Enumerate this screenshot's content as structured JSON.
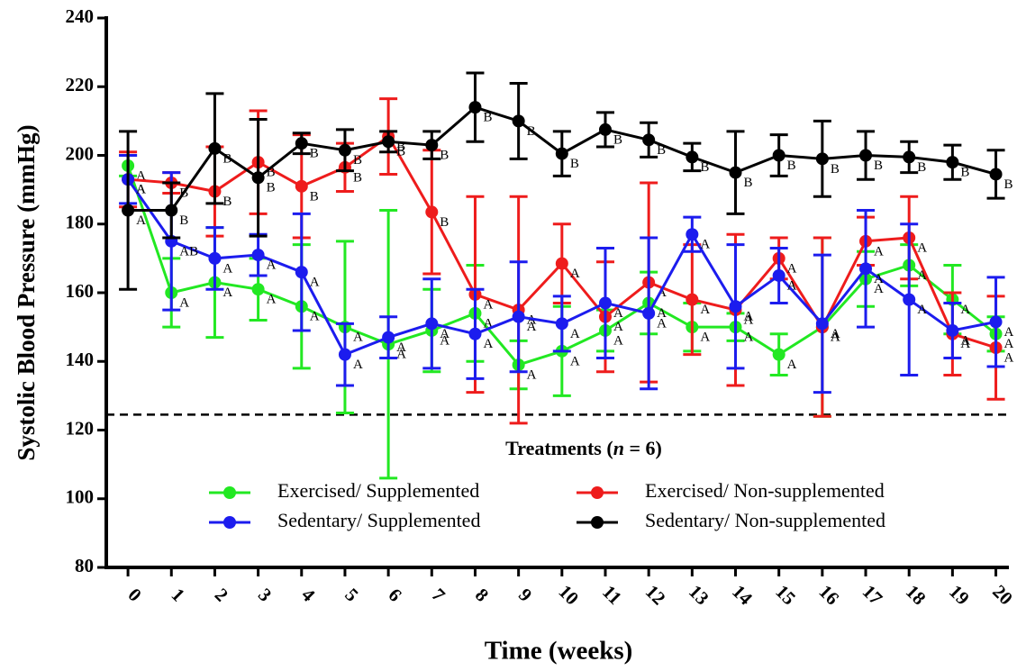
{
  "chart_data": {
    "type": "line",
    "y_label": "Systolic Blood Pressure (mmHg)",
    "x_label": "Time (weeks)",
    "legend_title_prefix": "Treatments (",
    "legend_title_italic": "n",
    "legend_title_suffix": " = 6)",
    "x": [
      0,
      1,
      2,
      3,
      4,
      5,
      6,
      7,
      8,
      9,
      10,
      11,
      12,
      13,
      14,
      15,
      16,
      17,
      18,
      19,
      20
    ],
    "xlim": [
      -0.5,
      20.3
    ],
    "xticks": [
      0,
      1,
      2,
      3,
      4,
      5,
      6,
      7,
      8,
      9,
      10,
      11,
      12,
      13,
      14,
      15,
      16,
      17,
      18,
      19,
      20
    ],
    "ylim": [
      80,
      240
    ],
    "yticks": [
      80,
      100,
      120,
      140,
      160,
      180,
      200,
      220,
      240
    ],
    "reference_line": 124.5,
    "series": [
      {
        "name": "Exercised/ Supplemented",
        "color": "#22e822",
        "values": [
          197,
          160,
          163,
          161,
          156,
          150,
          145,
          149,
          154,
          139,
          143,
          149,
          157,
          150,
          150,
          142,
          150,
          164,
          168,
          158,
          148
        ],
        "errors": [
          3,
          10,
          16,
          9,
          18,
          25,
          39,
          12,
          14,
          7,
          13,
          6,
          9,
          7,
          4,
          6,
          26,
          8,
          6,
          10,
          5
        ],
        "letters": [
          "A",
          "A",
          "A",
          "A",
          "A",
          "A",
          "A",
          "A",
          "A",
          "A",
          "A",
          "A",
          "A",
          "A",
          "A",
          "A",
          "A",
          "A",
          "A",
          "A",
          "A"
        ]
      },
      {
        "name": "Exercised/ Non-supplemented",
        "color": "#ee1c1c",
        "values": [
          193,
          192,
          189.5,
          198,
          191,
          196.5,
          205.5,
          183.5,
          159.5,
          155,
          168.5,
          153,
          163,
          158,
          155,
          170,
          150,
          175,
          176,
          148,
          144
        ],
        "errors": [
          8,
          3,
          13,
          15,
          15,
          7,
          11,
          18,
          28.5,
          33,
          11.5,
          16,
          29,
          16,
          22,
          6,
          26,
          7,
          12,
          12,
          15
        ],
        "letters": [
          "A",
          "B",
          "B",
          "B",
          "B",
          "B",
          "B",
          "B",
          "A",
          "A",
          "A",
          "A",
          "A",
          "A",
          "A",
          "A",
          "A",
          "A",
          "A",
          "A",
          "A"
        ]
      },
      {
        "name": "Sedentary/ Supplemented",
        "color": "#1c1cee",
        "values": [
          193,
          175,
          170,
          171,
          166,
          142,
          147,
          151,
          148,
          153,
          151,
          157,
          154,
          177,
          156,
          165,
          151,
          167,
          158,
          149,
          151.5
        ],
        "errors": [
          7,
          20,
          9,
          6,
          17,
          9,
          6,
          13,
          13,
          16,
          8,
          16,
          22,
          5,
          18,
          8,
          20,
          17,
          22,
          8,
          13
        ],
        "letters": [
          "A",
          "AB",
          "A",
          "A",
          "A",
          "A",
          "A",
          "A",
          "A",
          "A",
          "A",
          "A",
          "A",
          "A",
          "A",
          "A",
          "A",
          "A",
          "A",
          "A",
          "A"
        ]
      },
      {
        "name": "Sedentary/ Non-supplemented",
        "color": "#000000",
        "values": [
          184,
          184,
          202,
          193.5,
          203.5,
          201.5,
          204,
          203,
          214,
          210,
          200.5,
          207.5,
          204.5,
          199.5,
          195,
          200,
          199,
          200,
          199.5,
          198,
          194.5
        ],
        "errors": [
          23,
          8,
          16,
          17,
          3,
          6,
          3,
          4,
          10,
          11,
          6.5,
          5,
          5,
          4,
          12,
          6,
          11,
          7,
          4.5,
          5,
          7
        ],
        "letters": [
          "A",
          "B",
          "B",
          "B",
          "B",
          "B",
          "B",
          "B",
          "B",
          "B",
          "B",
          "B",
          "B",
          "B",
          "B",
          "B",
          "B",
          "B",
          "B",
          "B",
          "B"
        ]
      }
    ]
  }
}
